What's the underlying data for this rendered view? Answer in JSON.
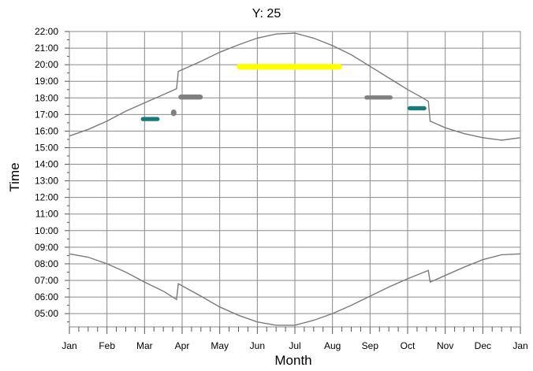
{
  "chart_data": {
    "type": "scatter",
    "title": "Y: 25",
    "xlabel": "Month",
    "ylabel": "Time",
    "x_tick_labels": [
      "Jan",
      "Feb",
      "Mar",
      "Apr",
      "May",
      "Jun",
      "Jul",
      "Aug",
      "Sep",
      "Oct",
      "Nov",
      "Dec",
      "Jan"
    ],
    "y_tick_labels": [
      "05:00",
      "06:00",
      "07:00",
      "08:00",
      "09:00",
      "10:00",
      "11:00",
      "12:00",
      "13:00",
      "14:00",
      "15:00",
      "16:00",
      "17:00",
      "18:00",
      "19:00",
      "20:00",
      "21:00",
      "22:00"
    ],
    "xlim": [
      0,
      12
    ],
    "ylim": [
      4.2,
      22.0
    ],
    "grid": true,
    "series": [
      {
        "type": "line",
        "color": "#7a7a7a",
        "points": [
          [
            0,
            15.7
          ],
          [
            0.5,
            16.1
          ],
          [
            1,
            16.6
          ],
          [
            1.5,
            17.2
          ],
          [
            2,
            17.7
          ],
          [
            2.5,
            18.2
          ],
          [
            2.85,
            18.55
          ],
          [
            2.9,
            19.6
          ],
          [
            3.5,
            20.2
          ],
          [
            4,
            20.75
          ],
          [
            4.5,
            21.2
          ],
          [
            5,
            21.6
          ],
          [
            5.5,
            21.85
          ],
          [
            6,
            21.9
          ],
          [
            6.5,
            21.6
          ],
          [
            7,
            21.15
          ],
          [
            7.5,
            20.6
          ],
          [
            8,
            19.9
          ],
          [
            8.5,
            19.2
          ],
          [
            9,
            18.5
          ],
          [
            9.4,
            18.0
          ],
          [
            9.55,
            17.8
          ],
          [
            9.6,
            16.6
          ],
          [
            10,
            16.2
          ],
          [
            10.5,
            15.85
          ],
          [
            11,
            15.6
          ],
          [
            11.5,
            15.45
          ],
          [
            12,
            15.6
          ]
        ]
      },
      {
        "type": "line",
        "color": "#7a7a7a",
        "points": [
          [
            0,
            8.6
          ],
          [
            0.5,
            8.4
          ],
          [
            1,
            8.0
          ],
          [
            1.5,
            7.5
          ],
          [
            2,
            6.9
          ],
          [
            2.5,
            6.35
          ],
          [
            2.85,
            5.85
          ],
          [
            2.9,
            6.8
          ],
          [
            3.5,
            6.05
          ],
          [
            4,
            5.4
          ],
          [
            4.5,
            4.9
          ],
          [
            5,
            4.5
          ],
          [
            5.5,
            4.3
          ],
          [
            6,
            4.3
          ],
          [
            6.5,
            4.6
          ],
          [
            7,
            5.0
          ],
          [
            7.5,
            5.5
          ],
          [
            8,
            6.05
          ],
          [
            8.5,
            6.6
          ],
          [
            9,
            7.1
          ],
          [
            9.55,
            7.6
          ],
          [
            9.6,
            6.9
          ],
          [
            10,
            7.3
          ],
          [
            10.5,
            7.8
          ],
          [
            11,
            8.25
          ],
          [
            11.5,
            8.55
          ],
          [
            12,
            8.6
          ]
        ]
      }
    ],
    "blobs": [
      {
        "color": "#ffff00",
        "x": [
          4.45,
          7.25
        ],
        "y": [
          19.7,
          20.05
        ]
      },
      {
        "color": "#808080",
        "x": [
          2.9,
          3.55
        ],
        "y": [
          17.9,
          18.2
        ]
      },
      {
        "color": "#808080",
        "x": [
          7.85,
          8.6
        ],
        "y": [
          17.9,
          18.15
        ]
      },
      {
        "color": "#808080",
        "x": [
          2.7,
          2.85
        ],
        "y": [
          16.9,
          17.3
        ]
      },
      {
        "color": "#1a7a7a",
        "x": [
          1.9,
          2.4
        ],
        "y": [
          16.6,
          16.85
        ]
      },
      {
        "color": "#1a7a7a",
        "x": [
          9.0,
          9.5
        ],
        "y": [
          17.25,
          17.5
        ]
      }
    ]
  }
}
